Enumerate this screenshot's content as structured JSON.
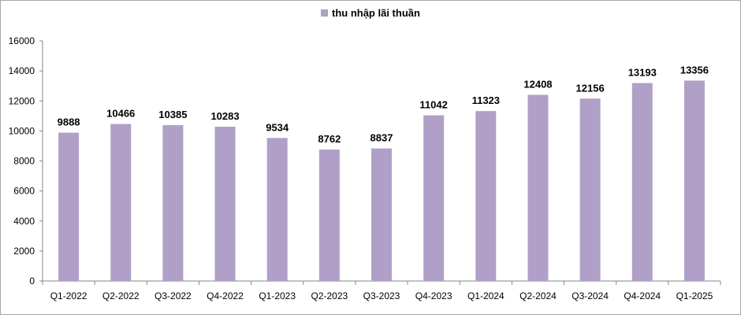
{
  "chart_data": {
    "type": "bar",
    "legend": {
      "label": "thu nhập lãi thuần",
      "position": "top"
    },
    "categories": [
      "Q1-2022",
      "Q2-2022",
      "Q3-2022",
      "Q4-2022",
      "Q1-2023",
      "Q2-2023",
      "Q3-2023",
      "Q4-2023",
      "Q1-2024",
      "Q2-2024",
      "Q3-2024",
      "Q4-2024",
      "Q1-2025"
    ],
    "series": [
      {
        "name": "thu nhập lãi thuần",
        "color": "#b0a0c8",
        "values": [
          9888,
          10466,
          10385,
          10283,
          9534,
          8762,
          8837,
          11042,
          11323,
          12408,
          12156,
          13193,
          13356
        ]
      }
    ],
    "ylim": [
      0,
      16000
    ],
    "yticks": [
      "0",
      "2000",
      "4000",
      "6000",
      "8000",
      "10000",
      "12000",
      "14000",
      "16000"
    ],
    "grid": false,
    "data_labels": true
  }
}
